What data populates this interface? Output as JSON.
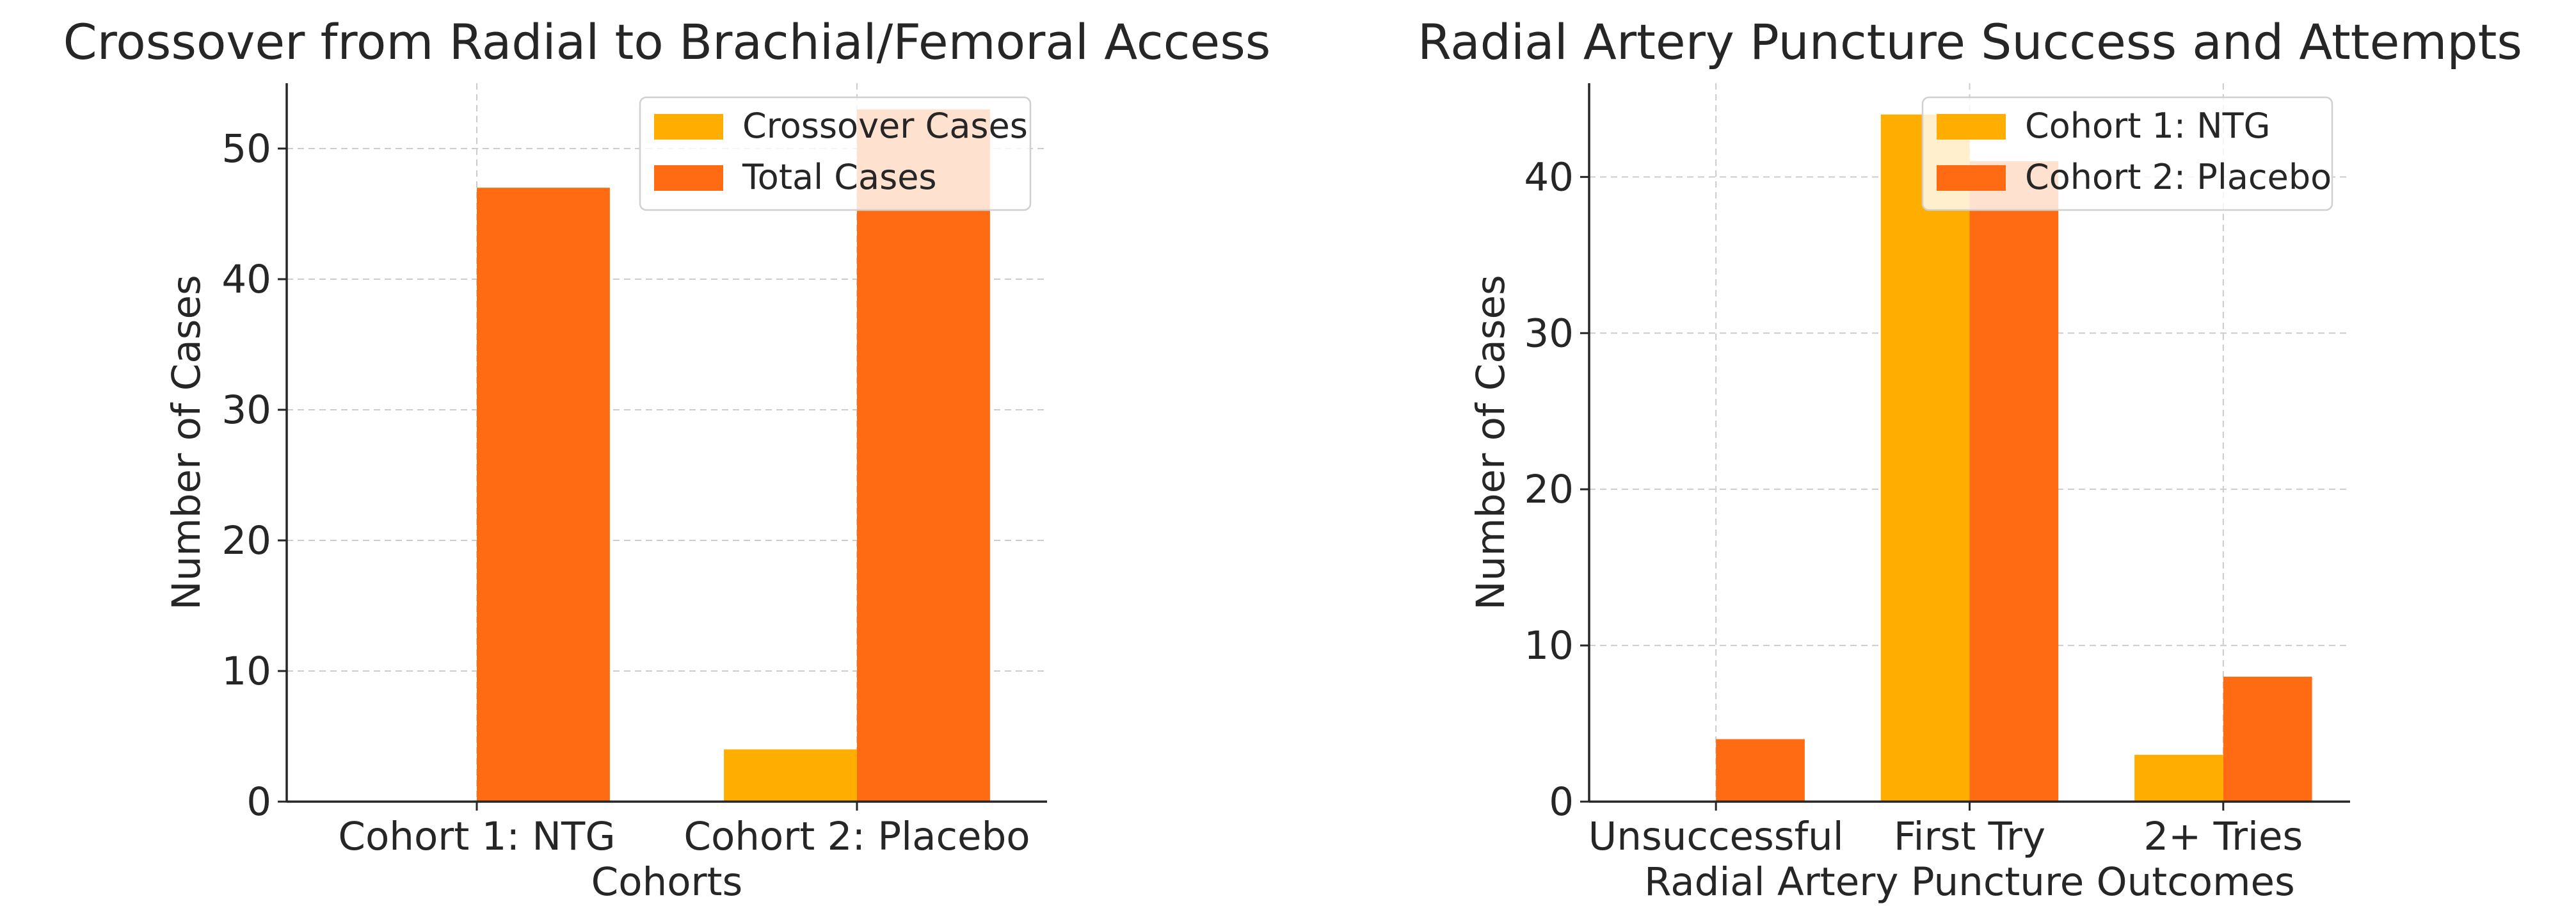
{
  "chart_data": [
    {
      "type": "bar",
      "title": "Crossover from Radial to Brachial/Femoral Access",
      "xlabel": "Cohorts",
      "ylabel": "Number of Cases",
      "categories": [
        "Cohort 1: NTG",
        "Cohort 2: Placebo"
      ],
      "series": [
        {
          "name": "Crossover Cases",
          "values": [
            0,
            4
          ],
          "color": "#FFAE00"
        },
        {
          "name": "Total Cases",
          "values": [
            47,
            53
          ],
          "color": "#FF6B12"
        }
      ],
      "ylim": [
        0,
        55
      ],
      "yticks": [
        0,
        10,
        20,
        30,
        40,
        50
      ],
      "grid": true,
      "legend_position": "top-right"
    },
    {
      "type": "bar",
      "title": "Radial Artery Puncture Success and Attempts",
      "xlabel": "Radial Artery Puncture Outcomes",
      "ylabel": "Number of Cases",
      "categories": [
        "Unsuccessful",
        "First Try",
        "2+ Tries"
      ],
      "series": [
        {
          "name": "Cohort 1: NTG",
          "values": [
            0,
            44,
            3
          ],
          "color": "#FFAE00"
        },
        {
          "name": "Cohort 2: Placebo",
          "values": [
            4,
            41,
            8
          ],
          "color": "#FF6B12"
        }
      ],
      "ylim": [
        0,
        46
      ],
      "yticks": [
        0,
        10,
        20,
        30,
        40
      ],
      "grid": true,
      "legend_position": "top-right"
    }
  ]
}
